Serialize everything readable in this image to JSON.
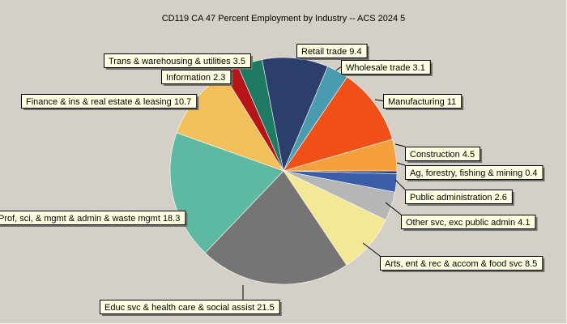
{
  "chart_data": {
    "type": "pie",
    "title": "CD119 CA 47 Percent Employment by Industry -- ACS 2024 5",
    "slices": [
      {
        "label": "Ag, forestry, fishing & mining",
        "value": 0.4,
        "color": "#2a3e84"
      },
      {
        "label": "Public administration",
        "value": 2.6,
        "color": "#3c5da8"
      },
      {
        "label": "Other svc, exc public admin",
        "value": 4.1,
        "color": "#b6b6b6"
      },
      {
        "label": "Arts, ent & rec & accom & food svc",
        "value": 8.5,
        "color": "#f2e896"
      },
      {
        "label": "Educ svc & health care & social assist",
        "value": 21.5,
        "color": "#757575"
      },
      {
        "label": "Prof, sci, & mgmt & admin & waste mgmt",
        "value": 18.3,
        "color": "#5db9a1"
      },
      {
        "label": "Finance & ins & real estate & leasing",
        "value": 10.7,
        "color": "#f2c05a"
      },
      {
        "label": "Information",
        "value": 2.3,
        "color": "#b51418"
      },
      {
        "label": "Trans & warehousing & utilities",
        "value": 3.5,
        "color": "#1e7a63"
      },
      {
        "label": "Retail trade",
        "value": 9.4,
        "color": "#2c3e6b"
      },
      {
        "label": "Wholesale trade",
        "value": 3.1,
        "color": "#4a9ab0"
      },
      {
        "label": "Manufacturing",
        "value": 11,
        "color": "#f05018"
      },
      {
        "label": "Construction",
        "value": 4.5,
        "color": "#f5a03a"
      }
    ]
  }
}
